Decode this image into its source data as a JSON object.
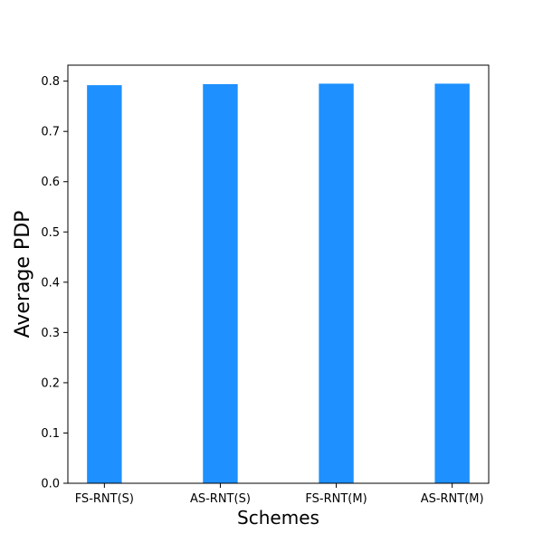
{
  "chart_data": {
    "type": "bar",
    "categories": [
      "FS-RNT(S)",
      "AS-RNT(S)",
      "FS-RNT(M)",
      "AS-RNT(M)"
    ],
    "values": [
      0.792,
      0.794,
      0.795,
      0.795
    ],
    "title": "",
    "xlabel": "Schemes",
    "ylabel": "Average PDP",
    "ylim": [
      0,
      0.8318
    ],
    "yticks": [
      0.0,
      0.1,
      0.2,
      0.3,
      0.4,
      0.5,
      0.6,
      0.7,
      0.8
    ],
    "ytick_labels": [
      "0.0",
      "0.1",
      "0.2",
      "0.3",
      "0.4",
      "0.5",
      "0.6",
      "0.7",
      "0.8"
    ],
    "bar_color": "#1e90ff",
    "grid": false,
    "legend": "none"
  }
}
